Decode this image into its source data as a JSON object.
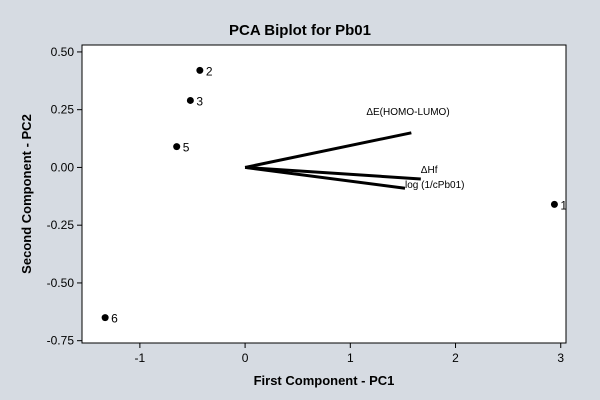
{
  "chart_data": {
    "type": "scatter",
    "title": "PCA Biplot for Pb01",
    "xlabel": "First Component - PC1",
    "ylabel": "Second Component - PC2",
    "xlim": [
      -1.55,
      3.05
    ],
    "ylim": [
      -0.76,
      0.53
    ],
    "x_ticks": [
      -1,
      0,
      1,
      2,
      3
    ],
    "x_tick_labels": [
      "-1",
      "0",
      "1",
      "2",
      "3"
    ],
    "y_ticks": [
      0.5,
      0.25,
      0.0,
      -0.25,
      -0.5,
      -0.75
    ],
    "y_tick_labels": [
      "0.50",
      "0.25",
      "0.00",
      "-0.25",
      "-0.50",
      "-0.75"
    ],
    "grid": false,
    "points": [
      {
        "label": "1",
        "x": 2.94,
        "y": -0.16
      },
      {
        "label": "2",
        "x": -0.43,
        "y": 0.42
      },
      {
        "label": "3",
        "x": -0.52,
        "y": 0.29
      },
      {
        "label": "5",
        "x": -0.65,
        "y": 0.09
      },
      {
        "label": "6",
        "x": -1.33,
        "y": -0.65
      }
    ],
    "vectors": [
      {
        "label": "ΔE(HOMO-LUMO)",
        "x": 1.58,
        "y": 0.15
      },
      {
        "label": "ΔHf",
        "x": 1.67,
        "y": -0.05
      },
      {
        "label": "log (1/cPb01)",
        "x": 1.52,
        "y": -0.09
      }
    ]
  }
}
